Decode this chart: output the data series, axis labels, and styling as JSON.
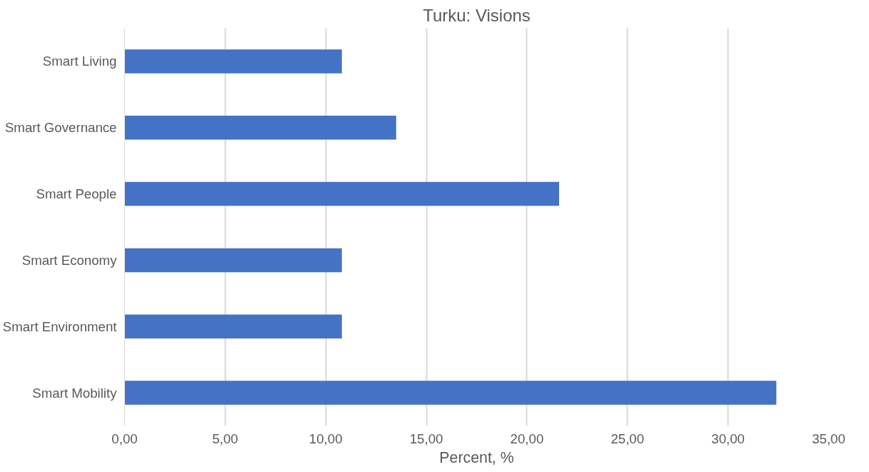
{
  "chart_data": {
    "type": "bar",
    "orientation": "horizontal",
    "title": "Turku: Visions",
    "xlabel": "Percent, %",
    "categories": [
      "Smart Living",
      "Smart Governance",
      "Smart People",
      "Smart Economy",
      "Smart Environment",
      "Smart Mobility"
    ],
    "series": [
      {
        "color": "#4472c4",
        "values": [
          10.8,
          13.5,
          21.6,
          10.8,
          10.8,
          32.4
        ]
      }
    ],
    "xlim": [
      0,
      35
    ],
    "xticks": [
      {
        "value": 0,
        "label": "0,00"
      },
      {
        "value": 5,
        "label": "5,00"
      },
      {
        "value": 10,
        "label": "10,00"
      },
      {
        "value": 15,
        "label": "15,00"
      },
      {
        "value": 20,
        "label": "20,00"
      },
      {
        "value": 25,
        "label": "25,00"
      },
      {
        "value": 30,
        "label": "30,00"
      },
      {
        "value": 35,
        "label": "35,00"
      }
    ],
    "grid": "x"
  }
}
